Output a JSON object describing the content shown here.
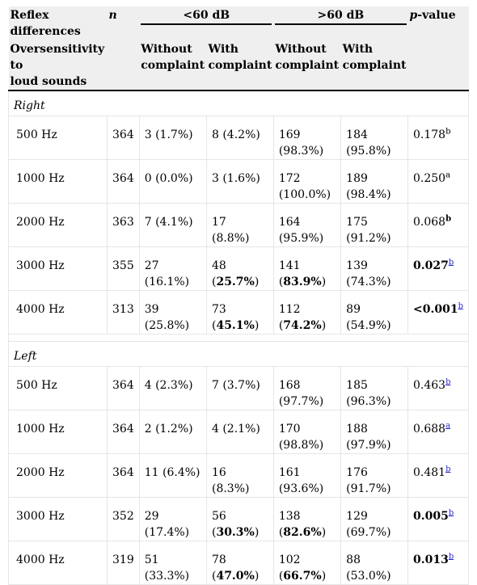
{
  "header": {
    "reflex": "Reflex differences",
    "n": "n",
    "lt60": "<60 dB",
    "gt60": ">60 dB",
    "p": "p",
    "p_suffix": "-value",
    "overs1": "Oversensitivity to",
    "overs2": "loud sounds",
    "without1": "Without",
    "without2": "complaint",
    "with1": "With",
    "with2": "complaint"
  },
  "sections": [
    {
      "label": "Right",
      "rows": [
        {
          "freq": "500 Hz",
          "n": "364",
          "a_pre": "3 (1.7%)",
          "a_num": "",
          "a_pct": "",
          "a_bold": false,
          "b_num": "8 (4.2%)",
          "b_pct": "",
          "b_bold": false,
          "c_num": "169",
          "c_pct": "98.3%",
          "c_bold": false,
          "d_num": "184",
          "d_pct": "95.8%",
          "d_bold": false,
          "p": "0.178",
          "p_bold": false,
          "sup": "b",
          "sup_link": false
        },
        {
          "freq": "1000 Hz",
          "n": "364",
          "a_pre": "0 (0.0%)",
          "b_num": "3 (1.6%)",
          "b_pct": "",
          "b_bold": false,
          "c_num": "172",
          "c_pct": "100.0%",
          "c_bold": false,
          "d_num": "189",
          "d_pct": "98.4%",
          "d_bold": false,
          "p": "0.250",
          "p_bold": false,
          "sup": "a",
          "sup_link": false
        },
        {
          "freq": "2000 Hz",
          "n": "363",
          "a_pre": "7 (4.1%)",
          "b_num": "17",
          "b_pct": "8.8%",
          "b_bold": false,
          "c_num": "164",
          "c_pct": "95.9%",
          "c_bold": false,
          "d_num": "175",
          "d_pct": "91.2%",
          "d_bold": false,
          "p": "0.068",
          "p_bold": false,
          "sup": "b",
          "sup_link": false,
          "sup_bold": true
        },
        {
          "freq": "3000 Hz",
          "n": "355",
          "a_pre": "27 (16.1%)",
          "b_num": "48",
          "b_pct": "25.7%",
          "b_bold": true,
          "c_num": "141",
          "c_pct": "83.9%",
          "c_bold": true,
          "d_num": "139",
          "d_pct": "74.3%",
          "d_bold": false,
          "p": "0.027",
          "p_bold": true,
          "sup": "b",
          "sup_link": true
        },
        {
          "freq": "4000 Hz",
          "n": "313",
          "a_pre": "39 (25.8%)",
          "b_num": "73",
          "b_pct": "45.1%",
          "b_bold": true,
          "c_num": "112",
          "c_pct": "74.2%",
          "c_bold": true,
          "d_num": "89",
          "d_pct": "54.9%",
          "d_bold": false,
          "p": "<0.001",
          "p_bold": true,
          "sup": "b",
          "sup_link": true
        }
      ]
    },
    {
      "label": "Left",
      "rows": [
        {
          "freq": "500 Hz",
          "n": "364",
          "a_pre": "4 (2.3%)",
          "b_num": "7 (3.7%)",
          "b_pct": "",
          "b_bold": false,
          "c_num": "168",
          "c_pct": "97.7%",
          "c_bold": false,
          "d_num": "185",
          "d_pct": "96.3%",
          "d_bold": false,
          "p": "0.463",
          "p_bold": false,
          "sup": "b",
          "sup_link": true
        },
        {
          "freq": "1000 Hz",
          "n": "364",
          "a_pre": "2 (1.2%)",
          "b_num": "4 (2.1%)",
          "b_pct": "",
          "b_bold": false,
          "c_num": "170",
          "c_pct": "98.8%",
          "c_bold": false,
          "d_num": "188",
          "d_pct": "97.9%",
          "d_bold": false,
          "p": "0.688",
          "p_bold": false,
          "sup": "a",
          "sup_link": true
        },
        {
          "freq": "2000 Hz",
          "n": "364",
          "a_pre": "11 (6.4%)",
          "b_num": "16",
          "b_pct": "8.3%",
          "b_bold": false,
          "c_num": "161",
          "c_pct": "93.6%",
          "c_bold": false,
          "d_num": "176",
          "d_pct": "91.7%",
          "d_bold": false,
          "p": "0.481",
          "p_bold": false,
          "sup": "b",
          "sup_link": true
        },
        {
          "freq": "3000 Hz",
          "n": "352",
          "a_pre": "29 (17.4%)",
          "b_num": "56",
          "b_pct": "30.3%",
          "b_bold": true,
          "c_num": "138",
          "c_pct": "82.6%",
          "c_bold": true,
          "d_num": "129",
          "d_pct": "69.7%",
          "d_bold": false,
          "p": "0.005",
          "p_bold": true,
          "sup": "b",
          "sup_link": true
        },
        {
          "freq": "4000 Hz",
          "n": "319",
          "a_pre": "51 (33.3%)",
          "b_num": "78",
          "b_pct": "47.0%",
          "b_bold": true,
          "c_num": "102",
          "c_pct": "66.7%",
          "c_bold": true,
          "d_num": "88",
          "d_pct": "53.0%",
          "d_bold": false,
          "p": "0.013",
          "p_bold": true,
          "sup": "b",
          "sup_link": true
        }
      ]
    }
  ]
}
